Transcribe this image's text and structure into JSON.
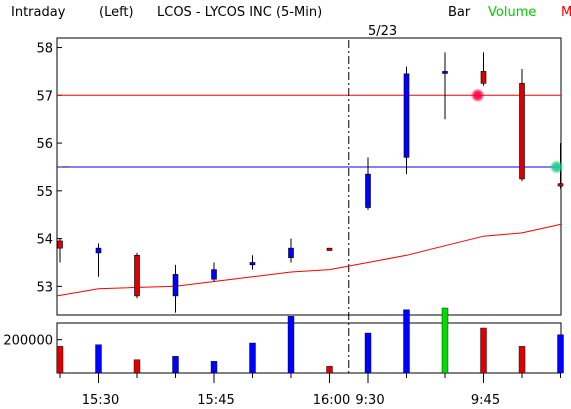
{
  "header": {
    "mode": "Intraday",
    "axis_side": "(Left)",
    "title": "LCOS - LYCOS INC (5-Min)",
    "chart_type_label": "Bar",
    "volume_label": "Volume",
    "m_label": "M",
    "date_marker": "5/23"
  },
  "colors": {
    "up": "#0000ff",
    "down": "#dd0000",
    "volume_green": "#00dd00",
    "volume_label": "#00cc00",
    "m_label": "#ff0000",
    "red_line": "#ff0000",
    "blue_line": "#0000ff",
    "moving_average": "#ff0000",
    "red_marker": "#ff0044",
    "green_marker": "#22cc88"
  },
  "chart_data": {
    "type": "bar",
    "title": "LCOS - LYCOS INC (5-Min)",
    "price_axis": {
      "ticks": [
        53,
        54,
        55,
        56,
        57,
        58
      ],
      "range": [
        52.4,
        58.2
      ]
    },
    "volume_axis": {
      "ticks": [
        200000
      ],
      "range": [
        0,
        300000
      ]
    },
    "x_ticks": [
      {
        "index": 1,
        "label": "15:30"
      },
      {
        "index": 4,
        "label": "15:45"
      },
      {
        "index": 7,
        "label": "16:00"
      },
      {
        "index": 8,
        "label": "9:30"
      },
      {
        "index": 11,
        "label": "9:45"
      }
    ],
    "session_divider_after_index": 7.5,
    "candles": [
      {
        "open": 53.95,
        "high": 54.0,
        "low": 53.5,
        "close": 53.8,
        "volume": 160000
      },
      {
        "open": 53.7,
        "high": 53.9,
        "low": 53.2,
        "close": 53.8,
        "volume": 170000
      },
      {
        "open": 53.65,
        "high": 53.7,
        "low": 52.75,
        "close": 52.8,
        "volume": 80000
      },
      {
        "open": 52.8,
        "high": 53.45,
        "low": 52.45,
        "close": 53.25,
        "volume": 100000
      },
      {
        "open": 53.15,
        "high": 53.5,
        "low": 53.1,
        "close": 53.35,
        "volume": 70000
      },
      {
        "open": 53.45,
        "high": 53.65,
        "low": 53.35,
        "close": 53.5,
        "volume": 180000
      },
      {
        "open": 53.6,
        "high": 54.0,
        "low": 53.5,
        "close": 53.8,
        "volume": 340000
      },
      {
        "open": 53.8,
        "high": 53.8,
        "low": 53.75,
        "close": 53.75,
        "volume": 40000
      },
      {
        "open": 54.65,
        "high": 55.7,
        "low": 54.6,
        "close": 55.35,
        "volume": 240000
      },
      {
        "open": 55.7,
        "high": 57.6,
        "low": 55.35,
        "close": 57.45,
        "volume": 380000
      },
      {
        "open": 57.5,
        "high": 57.9,
        "low": 56.5,
        "close": 57.5,
        "volume": 390000
      },
      {
        "open": 57.5,
        "high": 57.9,
        "low": 57.2,
        "close": 57.25,
        "volume": 270000
      },
      {
        "open": 57.25,
        "high": 57.55,
        "low": 55.2,
        "close": 55.25,
        "volume": 160000
      },
      {
        "open": 55.15,
        "high": 56.0,
        "low": 55.05,
        "close": 55.1,
        "volume": 230000
      }
    ],
    "volume_colors": [
      "down",
      "up",
      "down",
      "up",
      "up",
      "up",
      "up",
      "down",
      "up",
      "up",
      "green",
      "down",
      "down",
      "up"
    ],
    "moving_average": [
      {
        "x": -0.1,
        "y": 52.8
      },
      {
        "x": 1,
        "y": 52.95
      },
      {
        "x": 3,
        "y": 53.0
      },
      {
        "x": 5,
        "y": 53.2
      },
      {
        "x": 6,
        "y": 53.3
      },
      {
        "x": 7,
        "y": 53.35
      },
      {
        "x": 8,
        "y": 53.5
      },
      {
        "x": 9,
        "y": 53.65
      },
      {
        "x": 10,
        "y": 53.85
      },
      {
        "x": 11,
        "y": 54.05
      },
      {
        "x": 12,
        "y": 54.12
      },
      {
        "x": 13.5,
        "y": 54.3
      }
    ],
    "horizontal_lines": [
      {
        "name": "red-line",
        "value": 57.0,
        "color": "red_line"
      },
      {
        "name": "blue-line",
        "value": 55.5,
        "color": "blue_line"
      }
    ],
    "markers": [
      {
        "name": "red-marker",
        "x": 10.85,
        "value": 57.0,
        "color": "red_marker"
      },
      {
        "name": "green-marker",
        "x": 12.9,
        "value": 55.5,
        "color": "green_marker"
      }
    ],
    "left_tick_marks": [
      {
        "x": 0,
        "value": 55.5
      }
    ],
    "grid": false
  }
}
